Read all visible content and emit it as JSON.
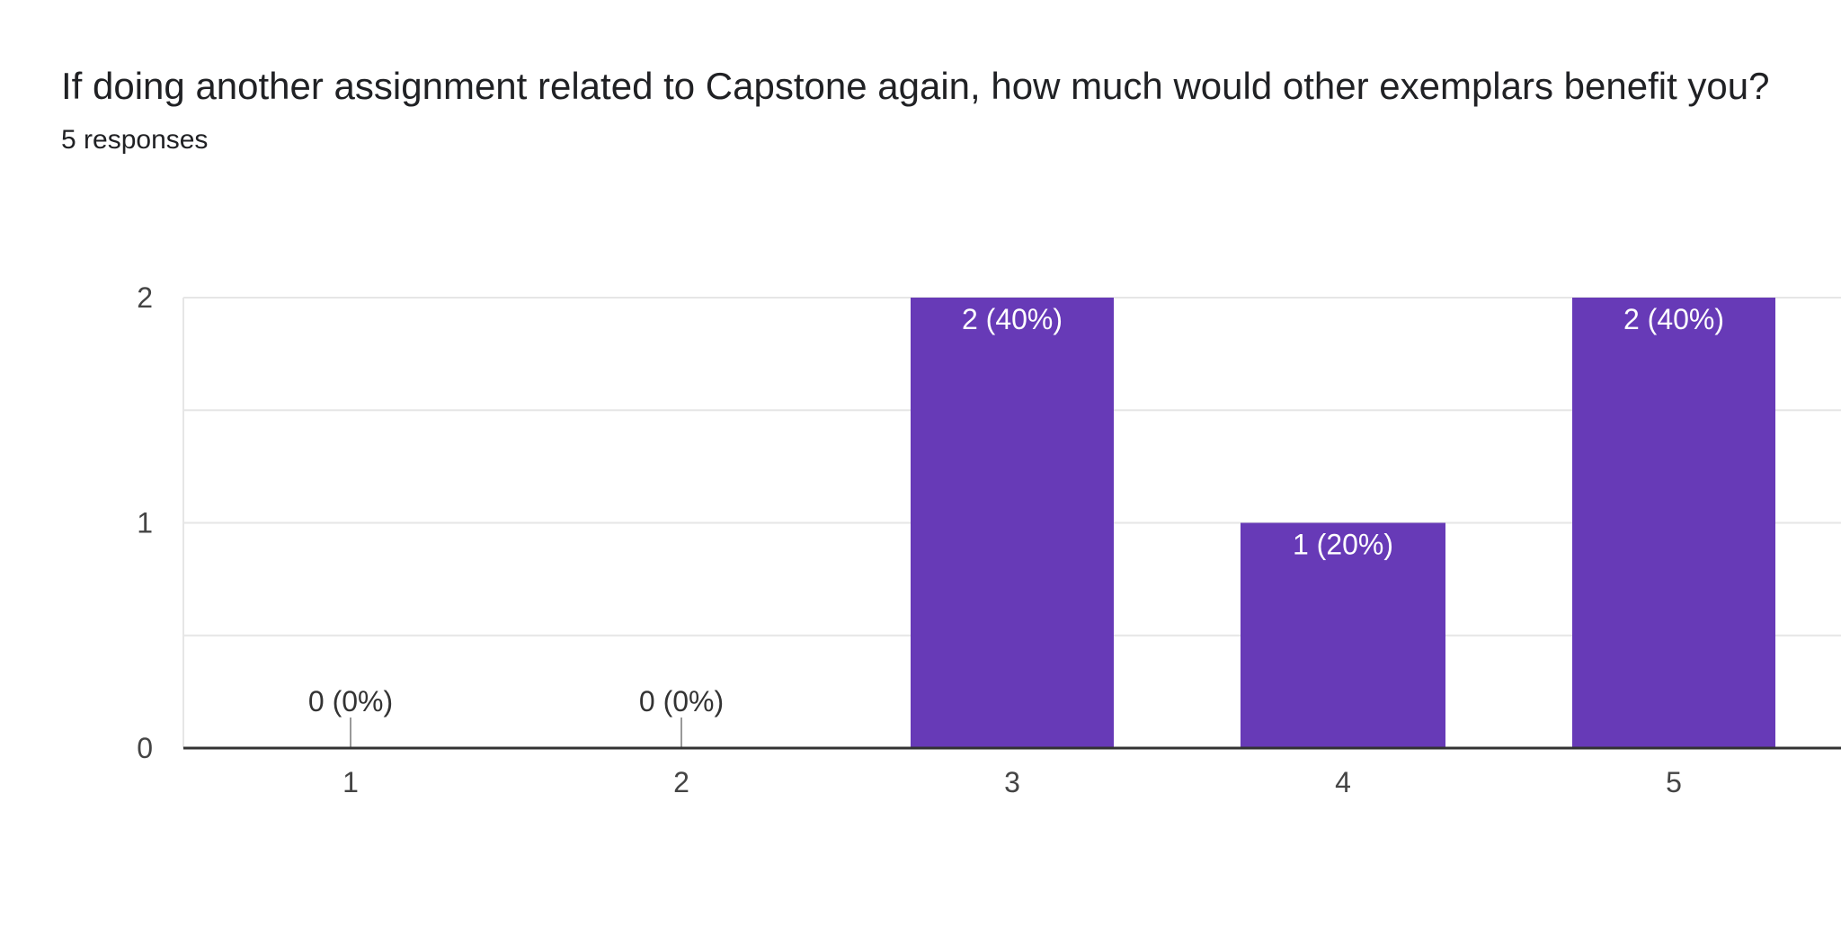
{
  "question": {
    "title": "If doing another assignment related to Capstone again, how much would other exemplars benefit you?",
    "responses": "5 responses"
  },
  "colors": {
    "bar": "#673ab7",
    "gridline": "#e6e6e6",
    "axis": "#333333"
  },
  "chart_data": {
    "type": "bar",
    "title": "If doing another assignment related to Capstone again, how much would other exemplars benefit you?",
    "xlabel": "",
    "ylabel": "",
    "categories": [
      "1",
      "2",
      "3",
      "4",
      "5"
    ],
    "values": [
      0,
      0,
      2,
      1,
      2
    ],
    "data_labels": [
      "0 (0%)",
      "0 (0%)",
      "2 (40%)",
      "1 (20%)",
      "2 (40%)"
    ],
    "ylim": [
      0,
      2
    ],
    "yticks": [
      "0",
      "1",
      "2"
    ],
    "grid": true
  }
}
